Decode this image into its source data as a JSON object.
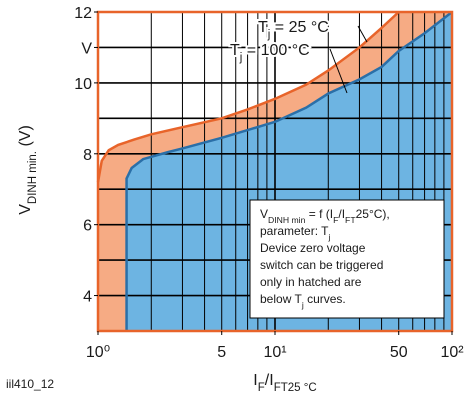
{
  "chart_data": {
    "type": "line",
    "xscale": "log",
    "xlim": [
      1,
      100
    ],
    "ylim": [
      3,
      12
    ],
    "xticks": [
      {
        "value": 1,
        "label": "10⁰"
      },
      5,
      {
        "value": 10,
        "label": "10¹"
      },
      50,
      {
        "value": 100,
        "label": "10²"
      }
    ],
    "yticks": [
      4,
      6,
      8,
      10,
      {
        "value": 11,
        "label": "V"
      },
      12
    ],
    "xgrid": [
      1,
      2,
      3,
      4,
      5,
      6,
      7,
      8,
      9,
      10,
      20,
      30,
      40,
      50,
      60,
      70,
      80,
      90,
      100
    ],
    "ygrid": [
      3,
      4,
      5,
      6,
      7,
      8,
      9,
      10,
      11,
      12
    ],
    "grid": true,
    "ylabel": [
      {
        "text": "V"
      },
      {
        "text": "DINH min.",
        "sub": true
      },
      {
        "text": " (V)"
      }
    ],
    "xlabel": [
      {
        "text": "I"
      },
      {
        "text": "F",
        "sub": true
      },
      {
        "text": "/I"
      },
      {
        "text": "FT25 °C",
        "sub": true
      }
    ],
    "footnote": "iil410_12",
    "series": [
      {
        "name": [
          {
            "text": "T"
          },
          {
            "text": "j",
            "sub": true
          },
          {
            "text": " = 25 °C"
          }
        ],
        "color": "#e8642a",
        "fill": "#f6ab84",
        "x": [
          1,
          1.05,
          1.15,
          1.3,
          1.6,
          2,
          3,
          5,
          7,
          10,
          15,
          20,
          30,
          40,
          50
        ],
        "values": [
          7.2,
          7.8,
          8.1,
          8.25,
          8.4,
          8.55,
          8.75,
          9.0,
          9.25,
          9.55,
          9.95,
          10.35,
          11.0,
          11.55,
          12
        ]
      },
      {
        "name": [
          {
            "text": "T"
          },
          {
            "text": "j",
            "sub": true
          },
          {
            "text": " = 100 °C"
          }
        ],
        "color": "#2a6fa8",
        "fill": "#6db4e2",
        "x": [
          1.45,
          1.45,
          1.55,
          1.8,
          2.5,
          3,
          5,
          10,
          15,
          20,
          30,
          40,
          50,
          70,
          100
        ],
        "values": [
          3,
          7.3,
          7.6,
          7.85,
          8.05,
          8.15,
          8.45,
          8.9,
          9.3,
          9.7,
          10.1,
          10.45,
          10.9,
          11.4,
          12
        ]
      }
    ],
    "annotation": [
      [
        {
          "text": "V"
        },
        {
          "text": "DINH min",
          "sub": true
        },
        {
          "text": " = f (I"
        },
        {
          "text": "F",
          "sub": true
        },
        {
          "text": "/I"
        },
        {
          "text": "FT",
          "sub": true
        },
        {
          "text": "25°C),"
        }
      ],
      [
        {
          "text": "parameter: T"
        },
        {
          "text": "j",
          "sub": true
        }
      ],
      [
        {
          "text": "Device zero voltage"
        }
      ],
      [
        {
          "text": "switch can be triggered"
        }
      ],
      [
        {
          "text": "only in hatched are"
        }
      ],
      [
        {
          "text": "below T"
        },
        {
          "text": "j",
          "sub": true
        },
        {
          "text": " curves."
        }
      ]
    ]
  }
}
